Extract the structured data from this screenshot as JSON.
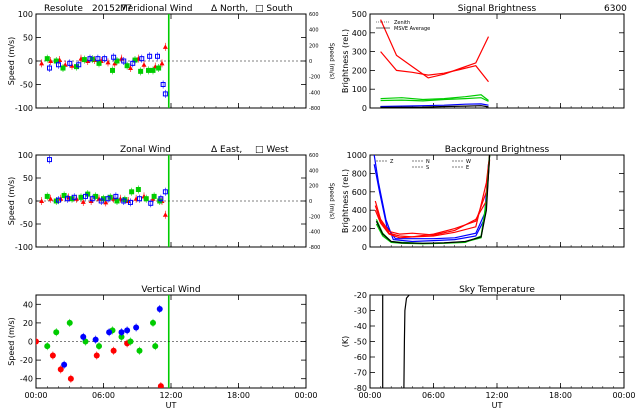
{
  "page_title": {
    "site": "Resolute",
    "date_code": "2015277"
  },
  "colors": {
    "north": "#ff0000",
    "south": "#0000ff",
    "zenith": "#0000ff",
    "east": "#ff0000",
    "west": "#00dd00",
    "green": "#00cc00",
    "sunrise_line": "#00cc00",
    "red_trace": "#dd0000"
  },
  "chart_data": [
    {
      "id": "meridional",
      "type": "scatter",
      "title": "Meridional Wind",
      "legend_text": [
        "Δ North,",
        "□ South"
      ],
      "ylabel": "Speed (m/s)",
      "ylabel_right": "Speed (m/s)",
      "xlim": [
        0,
        24
      ],
      "ylim": [
        -100,
        100
      ],
      "yticks": [
        -100,
        -50,
        0,
        50,
        100
      ],
      "yticks_right": [
        -800,
        -400,
        -200,
        0,
        200,
        400,
        600
      ],
      "xticks": [
        "",
        "",
        "",
        "",
        ""
      ],
      "vline_x": 11.8,
      "series": [
        {
          "color": "red",
          "x": [
            0.5,
            1.3,
            2.1,
            2.6,
            3.2,
            4.0,
            4.6,
            5.2,
            5.8,
            6.4,
            7.0,
            7.6,
            8.4,
            9.1,
            9.6,
            10.6,
            11.2,
            11.5
          ],
          "y": [
            -5,
            0,
            2,
            -8,
            -10,
            5,
            0,
            2,
            0,
            -3,
            -5,
            5,
            -15,
            5,
            -8,
            -12,
            -5,
            30
          ]
        },
        {
          "color": "green",
          "x": [
            1.0,
            1.8,
            2.4,
            3.6,
            4.3,
            5.0,
            5.6,
            6.8,
            7.2,
            8.1,
            8.8,
            9.3,
            10.0,
            10.4,
            10.9
          ],
          "y": [
            5,
            0,
            -15,
            -12,
            3,
            4,
            -5,
            -20,
            0,
            -10,
            2,
            -22,
            -20,
            -20,
            -15
          ]
        },
        {
          "color": "blue",
          "x": [
            1.2,
            2.0,
            3.0,
            3.8,
            4.8,
            5.5,
            6.1,
            6.9,
            7.8,
            8.6,
            9.4,
            10.1,
            10.8,
            11.3,
            11.5
          ],
          "y": [
            -15,
            -8,
            -5,
            -8,
            5,
            5,
            5,
            8,
            0,
            -5,
            5,
            10,
            10,
            -50,
            -70
          ]
        }
      ]
    },
    {
      "id": "zonal",
      "type": "scatter",
      "title": "Zonal Wind",
      "legend_text": [
        "Δ East,",
        "□ West"
      ],
      "ylabel": "Speed (m/s)",
      "ylabel_right": "Speed (m/s)",
      "xlim": [
        0,
        24
      ],
      "ylim": [
        -100,
        100
      ],
      "yticks": [
        -100,
        -50,
        0,
        50,
        100
      ],
      "yticks_right": [
        -800,
        -400,
        -200,
        0,
        200,
        400,
        600
      ],
      "xticks": [
        "",
        "",
        "",
        "",
        ""
      ],
      "vline_x": 11.8,
      "series": [
        {
          "color": "red",
          "x": [
            0.5,
            1.3,
            2.2,
            2.9,
            3.6,
            4.2,
            4.9,
            5.6,
            6.2,
            6.9,
            7.5,
            8.2,
            8.9,
            9.6,
            10.4,
            11.2,
            11.5
          ],
          "y": [
            0,
            5,
            5,
            8,
            5,
            -2,
            0,
            5,
            -3,
            5,
            5,
            0,
            5,
            10,
            5,
            0,
            -30
          ]
        },
        {
          "color": "green",
          "x": [
            1.0,
            1.8,
            2.5,
            3.2,
            4.0,
            4.6,
            5.3,
            6.0,
            6.6,
            7.2,
            7.9,
            8.5,
            9.1,
            9.8,
            10.5,
            11.0
          ],
          "y": [
            10,
            0,
            12,
            5,
            8,
            15,
            10,
            5,
            8,
            0,
            3,
            20,
            25,
            5,
            10,
            0
          ]
        },
        {
          "color": "blue",
          "x": [
            1.2,
            2.0,
            2.8,
            3.4,
            4.4,
            5.0,
            5.8,
            6.4,
            7.1,
            7.8,
            8.4,
            9.2,
            10.2,
            11.1,
            11.5
          ],
          "y": [
            90,
            2,
            5,
            8,
            10,
            5,
            0,
            5,
            10,
            0,
            -3,
            5,
            -5,
            5,
            20
          ]
        }
      ]
    },
    {
      "id": "vertical",
      "type": "scatter",
      "title": "Vertical Wind",
      "ylabel": "Speed (m/s)",
      "xlabel": "UT",
      "xlim": [
        0,
        24
      ],
      "ylim": [
        -50,
        50
      ],
      "yticks": [
        -40,
        -20,
        0,
        20,
        40
      ],
      "xticks": [
        "00:00",
        "06:00",
        "12:00",
        "18:00",
        "00:00"
      ],
      "vline_x": 11.8,
      "series": [
        {
          "color": "red",
          "x": [
            0.0,
            1.5,
            2.2,
            3.1,
            5.4,
            6.9,
            8.1,
            9.4,
            10.3,
            11.1
          ],
          "y": [
            0,
            -15,
            -30,
            -40,
            -15,
            -10,
            -2,
            -55,
            -55,
            -48
          ]
        },
        {
          "color": "green",
          "x": [
            1.0,
            1.8,
            3.0,
            4.4,
            5.6,
            6.8,
            7.6,
            8.4,
            9.2,
            10.4,
            10.6
          ],
          "y": [
            -5,
            10,
            20,
            0,
            -5,
            12,
            5,
            0,
            -10,
            20,
            -5
          ]
        },
        {
          "color": "blue",
          "x": [
            2.5,
            4.2,
            5.3,
            6.5,
            7.6,
            8.1,
            8.9,
            11.0
          ],
          "y": [
            -25,
            5,
            2,
            10,
            10,
            12,
            15,
            35
          ]
        }
      ]
    },
    {
      "id": "signal",
      "type": "line",
      "title": "Signal Brightness",
      "title_right": "6300",
      "legend": [
        "Zenith",
        "MSVE Average"
      ],
      "ylabel": "Brightness (rel.)",
      "xlim": [
        0,
        24
      ],
      "ylim": [
        0,
        500
      ],
      "yticks": [
        0,
        100,
        200,
        300,
        400,
        500
      ],
      "xticks": [
        "",
        "",
        "",
        "",
        ""
      ],
      "series": [
        {
          "color": "red",
          "x": [
            1.0,
            2.5,
            4.0,
            5.5,
            7.0,
            8.5,
            10.0,
            11.2
          ],
          "y": [
            470,
            280,
            220,
            160,
            180,
            210,
            240,
            380
          ]
        },
        {
          "color": "red",
          "x": [
            1.0,
            2.5,
            4.0,
            5.5,
            7.0,
            8.5,
            10.0,
            11.2
          ],
          "y": [
            300,
            200,
            190,
            175,
            185,
            205,
            225,
            140
          ]
        },
        {
          "color": "green",
          "x": [
            1.0,
            3.0,
            5.0,
            7.0,
            9.0,
            10.5,
            11.2
          ],
          "y": [
            50,
            55,
            45,
            50,
            60,
            70,
            40
          ]
        },
        {
          "color": "green",
          "x": [
            1.0,
            3.0,
            5.0,
            7.0,
            9.0,
            10.5,
            11.2
          ],
          "y": [
            40,
            42,
            38,
            45,
            50,
            55,
            35
          ]
        },
        {
          "color": "blue",
          "x": [
            1.0,
            3.0,
            5.0,
            7.0,
            9.0,
            10.5,
            11.2
          ],
          "y": [
            8,
            10,
            12,
            15,
            20,
            22,
            15
          ]
        },
        {
          "color": "black",
          "x": [
            1.0,
            3.0,
            5.0,
            7.0,
            9.0,
            10.5,
            11.2
          ],
          "y": [
            3,
            4,
            5,
            8,
            10,
            12,
            6
          ]
        }
      ]
    },
    {
      "id": "background",
      "type": "line",
      "title": "Background Brightness",
      "legend": [
        "Z",
        "N",
        "S",
        "W",
        "E"
      ],
      "ylabel": "Brightness (rel.)",
      "xlim": [
        0,
        24
      ],
      "ylim": [
        0,
        1000
      ],
      "yticks": [
        0,
        200,
        400,
        600,
        800,
        1000
      ],
      "xticks": [
        "",
        "",
        "",
        "",
        ""
      ],
      "series": [
        {
          "color": "blue",
          "x": [
            0.4,
            0.8,
            1.5,
            2.2,
            4.0,
            6.0,
            8.0,
            10.0,
            10.8,
            11.2
          ],
          "y": [
            1000,
            700,
            300,
            80,
            60,
            70,
            80,
            120,
            300,
            900
          ]
        },
        {
          "color": "blue",
          "x": [
            0.4,
            0.9,
            1.6,
            2.4,
            4.0,
            6.0,
            8.0,
            10.0,
            10.9,
            11.3
          ],
          "y": [
            900,
            600,
            220,
            90,
            90,
            90,
            100,
            150,
            380,
            1000
          ]
        },
        {
          "color": "red",
          "x": [
            0.5,
            1.0,
            1.8,
            2.8,
            4.0,
            6.0,
            8.0,
            10.0,
            11.0,
            11.3
          ],
          "y": [
            500,
            300,
            170,
            140,
            150,
            130,
            180,
            300,
            500,
            950
          ]
        },
        {
          "color": "red",
          "x": [
            0.5,
            1.0,
            1.8,
            2.8,
            4.0,
            6.0,
            8.0,
            10.0,
            11.0,
            11.3
          ],
          "y": [
            450,
            280,
            150,
            120,
            110,
            140,
            200,
            280,
            600,
            1000
          ]
        },
        {
          "color": "red",
          "x": [
            0.5,
            1.0,
            1.8,
            2.8,
            4.0,
            6.0,
            8.0,
            10.0,
            11.0,
            11.3
          ],
          "y": [
            400,
            260,
            140,
            100,
            110,
            120,
            160,
            220,
            700,
            1000
          ]
        },
        {
          "color": "green",
          "x": [
            0.6,
            1.2,
            2.0,
            3.0,
            5.0,
            7.0,
            9.0,
            10.5,
            11.0,
            11.3
          ],
          "y": [
            300,
            150,
            60,
            50,
            40,
            45,
            55,
            100,
            450,
            1000
          ]
        },
        {
          "color": "green",
          "x": [
            0.6,
            1.2,
            2.0,
            3.0,
            5.0,
            7.0,
            9.0,
            10.5,
            11.0,
            11.3
          ],
          "y": [
            250,
            120,
            50,
            40,
            35,
            40,
            50,
            120,
            500,
            1000
          ]
        },
        {
          "color": "black",
          "x": [
            0.6,
            1.2,
            2.0,
            3.0,
            5.0,
            7.0,
            9.0,
            10.5,
            11.0,
            11.3
          ],
          "y": [
            280,
            140,
            60,
            45,
            40,
            45,
            60,
            110,
            400,
            1000
          ]
        }
      ]
    },
    {
      "id": "skytemp",
      "type": "line",
      "title": "Sky Temperature",
      "ylabel": "(K)",
      "xlabel": "UT",
      "xlim": [
        0,
        24
      ],
      "ylim": [
        -80,
        -20
      ],
      "yticks": [
        -80,
        -70,
        -60,
        -50,
        -40,
        -30,
        -20
      ],
      "xticks": [
        "00:00",
        "06:00",
        "12:00",
        "18:00",
        "00:00"
      ],
      "series": [
        {
          "color": "black",
          "x": [
            1.2,
            1.2
          ],
          "y": [
            -80,
            -20
          ]
        },
        {
          "color": "black",
          "x": [
            3.2,
            3.25,
            3.3,
            3.45,
            3.7
          ],
          "y": [
            -80,
            -50,
            -30,
            -22,
            -20
          ]
        }
      ]
    }
  ]
}
